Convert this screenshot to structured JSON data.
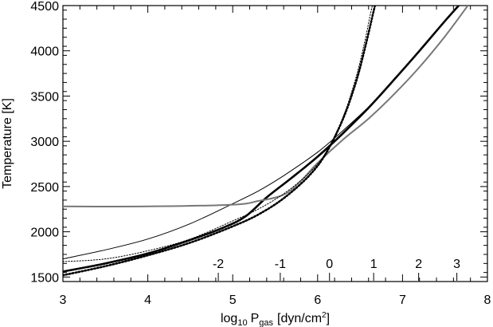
{
  "chart_data": {
    "type": "line",
    "title": "",
    "xlabel": {
      "main": "log",
      "base": "10",
      "var": "P",
      "var_sub": "gas",
      "unit_open": "[dyn/cm",
      "unit_sup": "2",
      "unit_close": "]"
    },
    "ylabel": "Temperature [K]",
    "xlim": [
      3,
      8
    ],
    "ylim": [
      1450,
      4500
    ],
    "x_ticks": [
      3,
      4,
      5,
      6,
      7,
      8
    ],
    "x_tick_labels": [
      "3",
      "4",
      "5",
      "6",
      "7",
      "8"
    ],
    "y_ticks": [
      1500,
      2000,
      2500,
      3000,
      3500,
      4000,
      4500
    ],
    "y_tick_labels": [
      "1500",
      "2000",
      "2500",
      "3000",
      "3500",
      "4000",
      "4500"
    ],
    "inner_scale": {
      "positions_x": [
        4.83,
        5.56,
        6.14,
        6.66,
        7.19,
        7.64
      ],
      "labels": [
        "-2",
        "-1",
        "0",
        "1",
        "2",
        "3"
      ]
    },
    "grid": false,
    "legend": "none",
    "series": [
      {
        "style": "thick-solid",
        "color": "#000000",
        "x": [
          3.0,
          3.5,
          4.0,
          4.5,
          4.9,
          5.15,
          5.4,
          5.7,
          6.0,
          6.3,
          6.6,
          6.9,
          7.2,
          7.5,
          7.7
        ],
        "y": [
          1560,
          1650,
          1760,
          1910,
          2050,
          2170,
          2380,
          2600,
          2830,
          3090,
          3370,
          3680,
          4000,
          4330,
          4540
        ]
      },
      {
        "style": "thin-solid",
        "color": "#000000",
        "x": [
          3.0,
          3.5,
          4.0,
          4.5,
          5.0,
          5.3,
          5.6,
          6.0,
          6.3,
          6.6,
          6.9,
          7.2
        ],
        "y": [
          1700,
          1800,
          1920,
          2090,
          2310,
          2450,
          2620,
          2880,
          3120,
          3380,
          3680,
          3990
        ]
      },
      {
        "style": "gray-thick",
        "color": "#777777",
        "x": [
          3.0,
          4.0,
          5.0,
          5.3,
          5.6,
          5.8,
          6.0,
          6.3,
          6.6,
          6.9,
          7.2,
          7.5,
          7.8
        ],
        "y": [
          2280,
          2280,
          2300,
          2340,
          2410,
          2560,
          2760,
          3020,
          3250,
          3520,
          3820,
          4160,
          4540
        ]
      },
      {
        "style": "thick-dotted",
        "color": "#000000",
        "x": [
          3.0,
          3.5,
          4.0,
          4.5,
          5.0,
          5.3,
          5.6,
          5.9,
          6.1,
          6.3,
          6.45,
          6.55,
          6.65,
          6.68
        ],
        "y": [
          1520,
          1620,
          1740,
          1880,
          2060,
          2190,
          2370,
          2620,
          2870,
          3250,
          3650,
          4000,
          4400,
          4520
        ]
      },
      {
        "style": "thin-dotted",
        "color": "#000000",
        "x": [
          3.0,
          3.5,
          4.0,
          4.5,
          5.0,
          5.3,
          5.6,
          5.9,
          6.1,
          6.3,
          6.45,
          6.55,
          6.62,
          6.65
        ],
        "y": [
          1670,
          1700,
          1790,
          1920,
          2120,
          2250,
          2420,
          2650,
          2880,
          3270,
          3700,
          4080,
          4400,
          4520
        ]
      }
    ]
  }
}
